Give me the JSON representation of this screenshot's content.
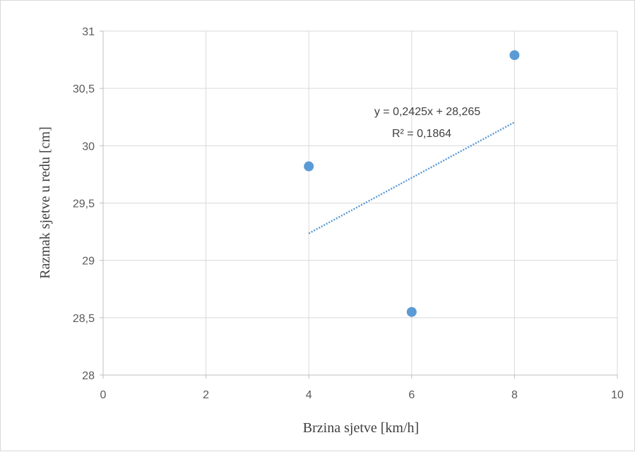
{
  "chart_data": {
    "type": "scatter",
    "xlabel": "Brzina sjetve [km/h]",
    "ylabel": "Razmak sjetve u redu [cm]",
    "xlim": [
      0,
      10
    ],
    "ylim": [
      28,
      31
    ],
    "x_ticks": [
      0,
      2,
      4,
      6,
      8,
      10
    ],
    "y_ticks": [
      28,
      28.5,
      29,
      29.5,
      30,
      30.5,
      31
    ],
    "x_tick_labels": [
      "0",
      "2",
      "4",
      "6",
      "8",
      "10"
    ],
    "y_tick_labels": [
      "28",
      "28,5",
      "29",
      "29,5",
      "30",
      "30,5",
      "31"
    ],
    "grid": true,
    "series": [
      {
        "x": [
          4,
          6,
          8
        ],
        "y": [
          29.82,
          28.55,
          30.79
        ],
        "color": "#5b9bd5"
      }
    ],
    "trendline": {
      "type": "linear",
      "slope": 0.2425,
      "intercept": 28.265,
      "x_range": [
        4,
        8
      ],
      "color": "#5b9bd5",
      "style": "dotted",
      "equation_label": "y = 0,2425x + 28,265",
      "r2_label": "R² = 0,1864"
    }
  }
}
